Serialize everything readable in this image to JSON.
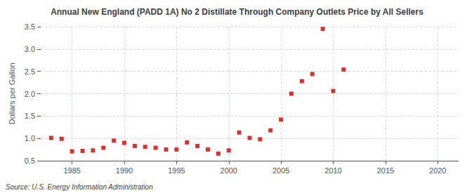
{
  "chart_data": {
    "type": "scatter",
    "title": "Annual New England (PADD 1A) No 2 Distillate Through Company Outlets Price by All Sellers",
    "ylabel": "Dollars per Gallon",
    "annotations": [
      "Source: U.S. Energy Information Administration"
    ],
    "color": "#cc0000",
    "marker": "square",
    "grid": true,
    "xlim": [
      1982,
      2022
    ],
    "ylim": [
      0.5,
      3.5
    ],
    "xticks": [
      1985,
      1990,
      1995,
      2000,
      2005,
      2010,
      2015,
      2020
    ],
    "yticks": [
      0.5,
      {
        "value": 1.0,
        "label": "1.0"
      },
      1.5,
      {
        "value": 2.0,
        "label": "2.0"
      },
      2.5,
      {
        "value": 3.0,
        "label": "3.0"
      },
      3.5
    ],
    "x": [
      1983,
      1984,
      1985,
      1986,
      1987,
      1988,
      1989,
      1990,
      1991,
      1992,
      1993,
      1994,
      1995,
      1996,
      1997,
      1998,
      1999,
      2000,
      2001,
      2002,
      2003,
      2004,
      2005,
      2006,
      2007,
      2008,
      2009,
      2010,
      2011
    ],
    "values": [
      1.01,
      0.99,
      0.71,
      0.72,
      0.73,
      0.79,
      0.95,
      0.9,
      0.83,
      0.81,
      0.79,
      0.75,
      0.75,
      0.91,
      0.83,
      0.75,
      0.66,
      0.73,
      1.13,
      1.01,
      0.98,
      1.18,
      1.42,
      2.0,
      2.28,
      2.44,
      3.45,
      2.06,
      2.54
    ]
  }
}
